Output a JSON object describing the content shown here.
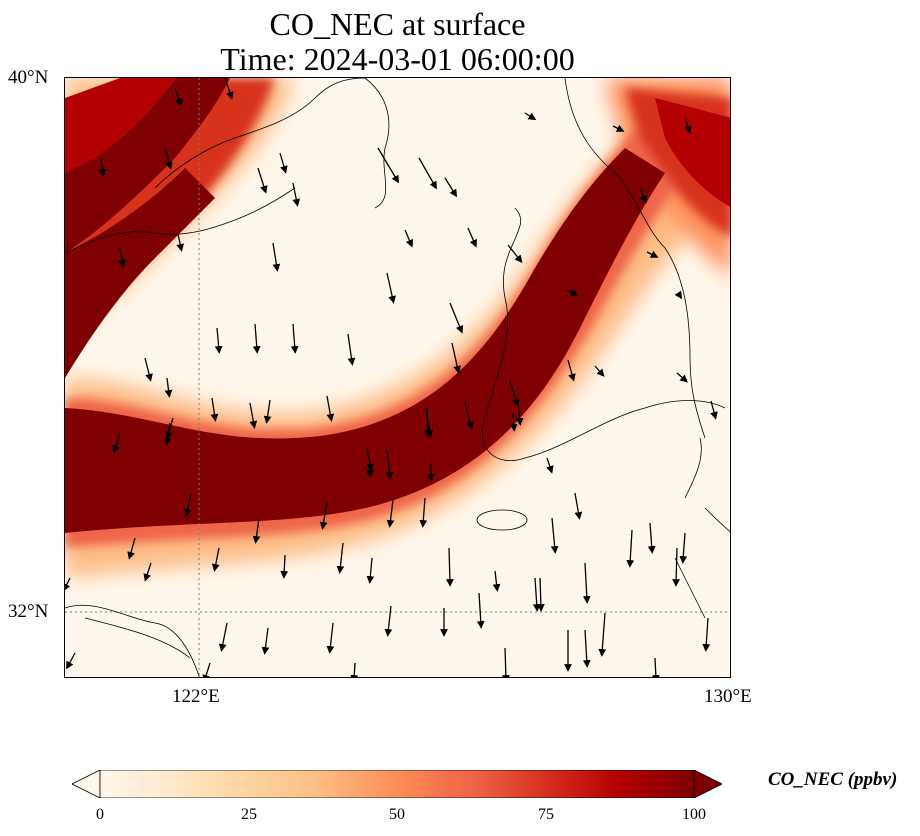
{
  "figure": {
    "title_line1": "CO_NEC at surface",
    "title_line2": "Time: 2024-03-01 06:00:00"
  },
  "axes": {
    "lat_labels": [
      "40°N",
      "32°N"
    ],
    "lon_labels": [
      "122°E",
      "130°E"
    ],
    "lon_range_deg": [
      120,
      130
    ],
    "lat_range_deg": [
      31,
      40
    ]
  },
  "field": {
    "variable": "CO_NEC",
    "level": "surface",
    "colormap": "OrRd",
    "colors": [
      "#fff7ec",
      "#fee8c8",
      "#fdd49e",
      "#fdbb84",
      "#fc8d59",
      "#ef6548",
      "#d7301f",
      "#b30000",
      "#7f0000"
    ],
    "vmin": 0,
    "vmax": 100,
    "plume_main": "band from west (lat ~33-35°N) curving northeast to ~39°N 129°E, values 80-100 ppbv at core",
    "plume_north": "band across northwest corner from ~38°N 120°E to ~40°N 122°E, values 75-100 ppbv",
    "plume_northeast": "band near 39°N 128-130°E, values 60-90 ppbv"
  },
  "colorbar": {
    "label": "CO_NEC (ppbv)",
    "ticks": [
      "0",
      "25",
      "50",
      "75",
      "100"
    ],
    "extend": "both"
  },
  "wind": {
    "description": "wind vectors mostly pointing south/south-southeast across the domain"
  }
}
